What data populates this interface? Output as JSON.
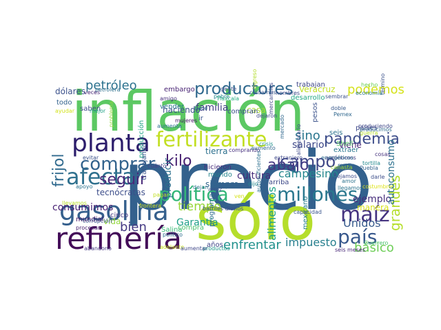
{
  "wordcloud": {
    "words": [
      {
        "text": "precio",
        "color": "#33618d",
        "rot": 0
      },
      {
        "text": "inflación",
        "color": "#5cc863",
        "rot": 0
      },
      {
        "text": "sólo",
        "color": "#b5de2b",
        "rot": 0
      },
      {
        "text": "refinería",
        "color": "#440d59",
        "rot": 0
      },
      {
        "text": "gasolina",
        "color": "#35608d",
        "rot": 0
      },
      {
        "text": "fertilizante",
        "color": "#c2df23",
        "rot": 0
      },
      {
        "text": "planta",
        "color": "#2d1e6c",
        "rot": 0
      },
      {
        "text": "productores",
        "color": "#30698e",
        "rot": 0
      },
      {
        "text": "política",
        "color": "#34b679",
        "rot": 0
      },
      {
        "text": "afecta",
        "color": "#30718e",
        "rot": 0
      },
      {
        "text": "comprar",
        "color": "#33638d",
        "rot": 0
      },
      {
        "text": "pueblo",
        "color": "#414387",
        "rot": 0
      },
      {
        "text": "millones",
        "color": "#2a788e",
        "rot": 0
      },
      {
        "text": "maíz",
        "color": "#463480",
        "rot": 0
      },
      {
        "text": "país",
        "color": "#38588c",
        "rot": 0
      },
      {
        "text": "petróleo",
        "color": "#2c728e",
        "rot": 0
      },
      {
        "text": "kilo",
        "color": "#461f70",
        "rot": 0
      },
      {
        "text": "seguir",
        "color": "#482979",
        "rot": 0
      },
      {
        "text": "frijol",
        "color": "#306a8e",
        "rot": 270
      },
      {
        "text": "abajo",
        "color": "#453781",
        "rot": 0
      },
      {
        "text": "pandemia",
        "color": "#3d4d8a",
        "rot": 0
      },
      {
        "text": "podemos",
        "color": "#d5e21a",
        "rot": 0
      },
      {
        "text": "campo",
        "color": "#3f4788",
        "rot": 0
      },
      {
        "text": "sino",
        "color": "#2a768e",
        "rot": 0
      },
      {
        "text": "tiempo",
        "color": "#99d83d",
        "rot": 0
      },
      {
        "text": "Unidos",
        "color": "#375a8c",
        "rot": 0
      },
      {
        "text": "bien",
        "color": "#443983",
        "rot": 0
      },
      {
        "text": "consumimos",
        "color": "#482173",
        "rot": 0
      },
      {
        "text": "enfrentar",
        "color": "#21918c",
        "rot": 0
      },
      {
        "text": "impuesto",
        "color": "#277f8e",
        "rot": 0
      },
      {
        "text": "básico",
        "color": "#6ece58",
        "rot": 0
      },
      {
        "text": "grandes",
        "color": "#b5de2b",
        "rot": 270
      },
      {
        "text": "alimentos",
        "color": "#1fa187",
        "rot": 270
      },
      {
        "text": "campesino",
        "color": "#24878e",
        "rot": 0
      },
      {
        "text": "ejemplo",
        "color": "#472d7b",
        "rot": 0
      },
      {
        "text": "salario",
        "color": "#3f4889",
        "rot": 0
      },
      {
        "text": "familia",
        "color": "#424086",
        "rot": 0
      },
      {
        "text": "producir",
        "color": "#2d718e",
        "rot": 270
      },
      {
        "text": "Garantía",
        "color": "#1f9f88",
        "rot": 0
      },
      {
        "text": "cultura",
        "color": "#472c7a",
        "rot": 0
      },
      {
        "text": "Veracruz",
        "color": "#c2df23",
        "rot": 0
      },
      {
        "text": "autoconsumo",
        "color": "#2d718e",
        "rot": 270
      },
      {
        "text": "dólares",
        "color": "#3b518b",
        "rot": 0
      },
      {
        "text": "vida",
        "color": "#95d840",
        "rot": 0
      },
      {
        "text": "siempre",
        "color": "#32658e",
        "rot": 0
      },
      {
        "text": "tecnócratas",
        "color": "#3d4e8a",
        "rot": 0
      },
      {
        "text": "producción",
        "color": "#21a585",
        "rot": 270
      },
      {
        "text": "trabajando",
        "color": "#39568c",
        "rot": 270
      },
      {
        "text": "haciendo",
        "color": "#3b528b",
        "rot": 0
      },
      {
        "text": "comprando",
        "color": "#46307e",
        "rot": 0
      },
      {
        "text": "hicieron",
        "color": "#472e7c",
        "rot": 0
      },
      {
        "text": "mundo",
        "color": "#25858e",
        "rot": 0
      },
      {
        "text": "tierra",
        "color": "#2d708e",
        "rot": 0
      },
      {
        "text": "viene",
        "color": "#482677",
        "rot": 0
      },
      {
        "text": "casa",
        "color": "#a8db34",
        "rot": 0
      },
      {
        "text": "compran",
        "color": "#3c4f8a",
        "rot": 0
      },
      {
        "text": "manera",
        "color": "#d8e219",
        "rot": 0
      },
      {
        "text": "programa",
        "color": "#2f6c8e",
        "rot": 270
      },
      {
        "text": "arriba",
        "color": "#3e4a89",
        "rot": 0
      },
      {
        "text": "años",
        "color": "#404688",
        "rot": 0
      },
      {
        "text": "mexicano",
        "color": "#277e8e",
        "rot": 270
      },
      {
        "text": "mundial",
        "color": "#48186a",
        "rot": 0
      },
      {
        "text": "cinco",
        "color": "#453882",
        "rot": 0
      },
      {
        "text": "saben",
        "color": "#3e4989",
        "rot": 0
      },
      {
        "text": "todo",
        "color": "#33628d",
        "rot": 0
      },
      {
        "text": "embargo",
        "color": "#482374",
        "rot": 0
      },
      {
        "text": "vender",
        "color": "#2a778e",
        "rot": 0
      },
      {
        "text": "Shell",
        "color": "#56c667",
        "rot": 0
      },
      {
        "text": "Salina",
        "color": "#38b977",
        "rot": 0
      },
      {
        "text": "trabajan",
        "color": "#3f4788",
        "rot": 0
      },
      {
        "text": "desarrollo",
        "color": "#22a884",
        "rot": 0
      },
      {
        "text": "pesos",
        "color": "#3b528b",
        "rot": 270
      },
      {
        "text": "seis",
        "color": "#2c738e",
        "rot": 0
      },
      {
        "text": "extraer",
        "color": "#2a768e",
        "rot": 0
      },
      {
        "text": "países",
        "color": "#3e4989",
        "rot": 0
      },
      {
        "text": "ir",
        "color": "#39558c",
        "rot": 0
      },
      {
        "text": "compra",
        "color": "#4ac16d",
        "rot": 0
      },
      {
        "text": "barriles diarios",
        "color": "#3d4e8a",
        "rot": 0
      },
      {
        "text": "autosuficientes",
        "color": "#2d708e",
        "rot": 270
      },
      {
        "text": "Pemex",
        "color": "#31688e",
        "rot": 0
      },
      {
        "text": "doble",
        "color": "#38598c",
        "rot": 0
      },
      {
        "text": "Puebla",
        "color": "#33638d",
        "rot": 0
      },
      {
        "text": "Guerrero",
        "color": "#4ac16d",
        "rot": 0
      },
      {
        "text": "seis meses",
        "color": "#482878",
        "rot": 0
      },
      {
        "text": "costumbre",
        "color": "#dde318",
        "rot": 0
      },
      {
        "text": "llegamos",
        "color": "#2b748e",
        "rot": 0
      },
      {
        "text": "capacidad",
        "color": "#39558c",
        "rot": 0
      },
      {
        "text": "agrónomos",
        "color": "#433e85",
        "rot": 0
      },
      {
        "text": "dejaron",
        "color": "#3e4a89",
        "rot": 0
      },
      {
        "text": "dejamos",
        "color": "#3d4d8a",
        "rot": 0
      },
      {
        "text": "medio",
        "color": "#31678e",
        "rot": 0
      },
      {
        "text": "canasta",
        "color": "#a2da37",
        "rot": 0
      },
      {
        "text": "tortilla",
        "color": "#23898e",
        "rot": 0
      },
      {
        "text": "darle",
        "color": "#3d4e8a",
        "rot": 0
      },
      {
        "text": "cosas",
        "color": "#46327e",
        "rot": 0
      },
      {
        "text": "amor",
        "color": "#2c738e",
        "rot": 0
      },
      {
        "text": "productos",
        "color": "#1f998a",
        "rot": 0
      },
      {
        "text": "pobre",
        "color": "#25848e",
        "rot": 0
      },
      {
        "text": "dijo",
        "color": "#23898e",
        "rot": 0
      },
      {
        "text": "cuánto",
        "color": "#433e85",
        "rot": 0
      },
      {
        "text": "arroz",
        "color": "#3b528b",
        "rot": 0
      },
      {
        "text": "apoyo",
        "color": "#2c728e",
        "rot": 0
      },
      {
        "text": "llevamos",
        "color": "#b8de29",
        "rot": 0
      },
      {
        "text": "corrupción",
        "color": "#3a548c",
        "rot": 0
      },
      {
        "text": "procesar",
        "color": "#482071",
        "rot": 0
      },
      {
        "text": "político",
        "color": "#2e6e8e",
        "rot": 0
      },
      {
        "text": "abandono",
        "color": "#453882",
        "rot": 0
      },
      {
        "text": "adelante",
        "color": "#c8e020",
        "rot": 0
      },
      {
        "text": "aumentar",
        "color": "#3f4788",
        "rot": 0
      },
      {
        "text": "frontera",
        "color": "#d2e21b",
        "rot": 0
      },
      {
        "text": "pagar",
        "color": "#c0df25",
        "rot": 0
      },
      {
        "text": "ven",
        "color": "#d5e21a",
        "rot": 0
      },
      {
        "text": "extranjero",
        "color": "#3e4989",
        "rot": 0
      },
      {
        "text": "crisis",
        "color": "#20928c",
        "rot": 0
      },
      {
        "text": "aumento",
        "color": "#31678e",
        "rot": 0
      },
      {
        "text": "producimos",
        "color": "#2f6b8e",
        "rot": 0
      },
      {
        "text": "hace",
        "color": "#2d708e",
        "rot": 0
      },
      {
        "text": "dejan",
        "color": "#2c738e",
        "rot": 0
      },
      {
        "text": "guerra",
        "color": "#b2dd2d",
        "rot": 0
      },
      {
        "text": "energéticos",
        "color": "#2e6e8e",
        "rot": 0
      },
      {
        "text": "produciendo",
        "color": "#3f4788",
        "rot": 0
      },
      {
        "text": "Tlaxcala",
        "color": "#27ad81",
        "rot": 0
      },
      {
        "text": "amigo",
        "color": "#472f7d",
        "rot": 0
      },
      {
        "text": "mujeres",
        "color": "#481668",
        "rot": 0
      },
      {
        "text": "aumenta",
        "color": "#2c728e",
        "rot": 0
      },
      {
        "text": "ayudar",
        "color": "#d2e21b",
        "rot": 0
      },
      {
        "text": "mejor",
        "color": "#20a386",
        "rot": 0
      },
      {
        "text": "problema",
        "color": "#95d840",
        "rot": 270
      },
      {
        "text": "sembrar",
        "color": "#3b528b",
        "rot": 0
      },
      {
        "text": "mercancías",
        "color": "#3f4788",
        "rot": 270
      },
      {
        "text": "hombres",
        "color": "#3f4889",
        "rot": 0
      },
      {
        "text": "cuidamos",
        "color": "#39568c",
        "rot": 0
      },
      {
        "text": "gente",
        "color": "#3d4e8a",
        "rot": 0
      },
      {
        "text": "petrolera",
        "color": "#2d708e",
        "rot": 0
      },
      {
        "text": "veces",
        "color": "#482576",
        "rot": 0
      },
      {
        "text": "hecho",
        "color": "#6ece58",
        "rot": 0
      },
      {
        "text": "término",
        "color": "#3b528b",
        "rot": 270
      },
      {
        "text": "economía",
        "color": "#2a788e",
        "rot": 0
      },
      {
        "text": "ingreso",
        "color": "#b2dd2d",
        "rot": 270
      },
      {
        "text": "evitar",
        "color": "#3b518b",
        "rot": 0
      },
      {
        "text": "alimentario",
        "color": "#3e4989",
        "rot": 270
      },
      {
        "text": "mercado",
        "color": "#31688e",
        "rot": 270
      }
    ]
  }
}
